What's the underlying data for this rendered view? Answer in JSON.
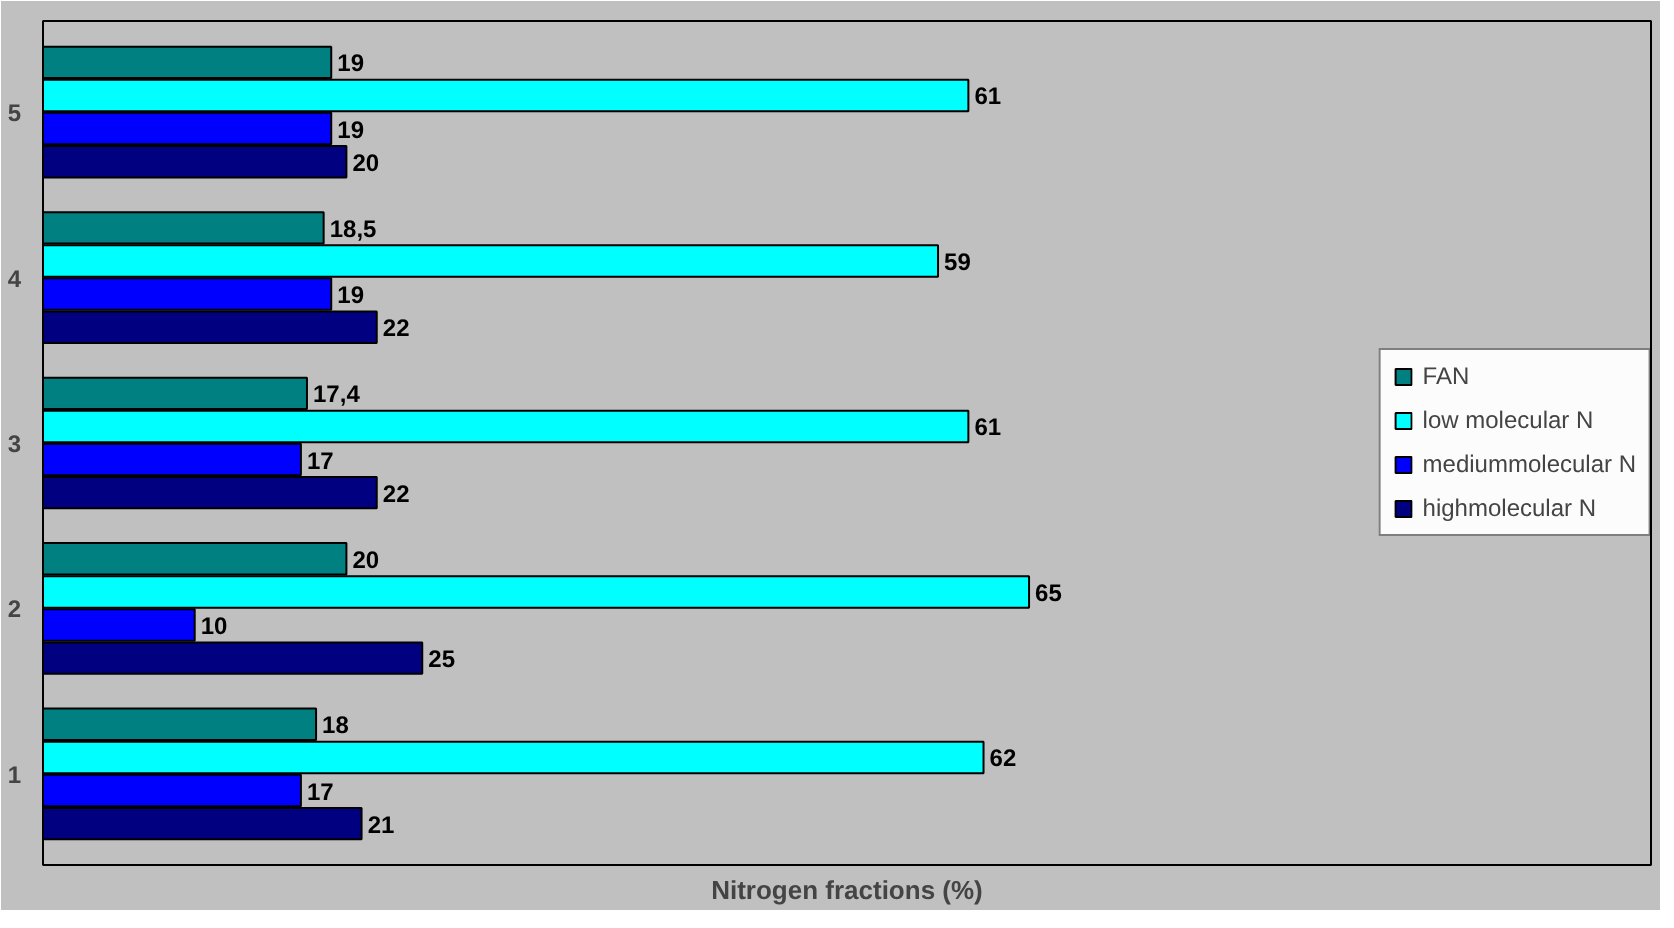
{
  "chart_data": {
    "type": "bar",
    "orientation": "horizontal",
    "xlabel": "Nitrogen fractions (%)",
    "categories": [
      "5",
      "4",
      "3",
      "2",
      "1"
    ],
    "xlim": [
      0,
      106
    ],
    "tick_labels": "y",
    "grid": false,
    "legend": "right",
    "series": [
      {
        "name": "FAN",
        "color": "#008080",
        "values": [
          19,
          18.5,
          17.4,
          20,
          18
        ],
        "value_labels": [
          "19",
          "18,5",
          "17,4",
          "20",
          "18"
        ]
      },
      {
        "name": "low molecular N",
        "color": "#00ffff",
        "values": [
          61,
          59,
          61,
          65,
          62
        ],
        "value_labels": [
          "61",
          "59",
          "61",
          "65",
          "62"
        ]
      },
      {
        "name": "mediummolecular N",
        "color": "#0000ff",
        "values": [
          19,
          19,
          17,
          10,
          17
        ],
        "value_labels": [
          "19",
          "19",
          "17",
          "10",
          "17"
        ]
      },
      {
        "name": "highmolecular N",
        "color": "#000080",
        "values": [
          20,
          22,
          22,
          25,
          21
        ],
        "value_labels": [
          "20",
          "22",
          "22",
          "25",
          "21"
        ]
      }
    ]
  }
}
